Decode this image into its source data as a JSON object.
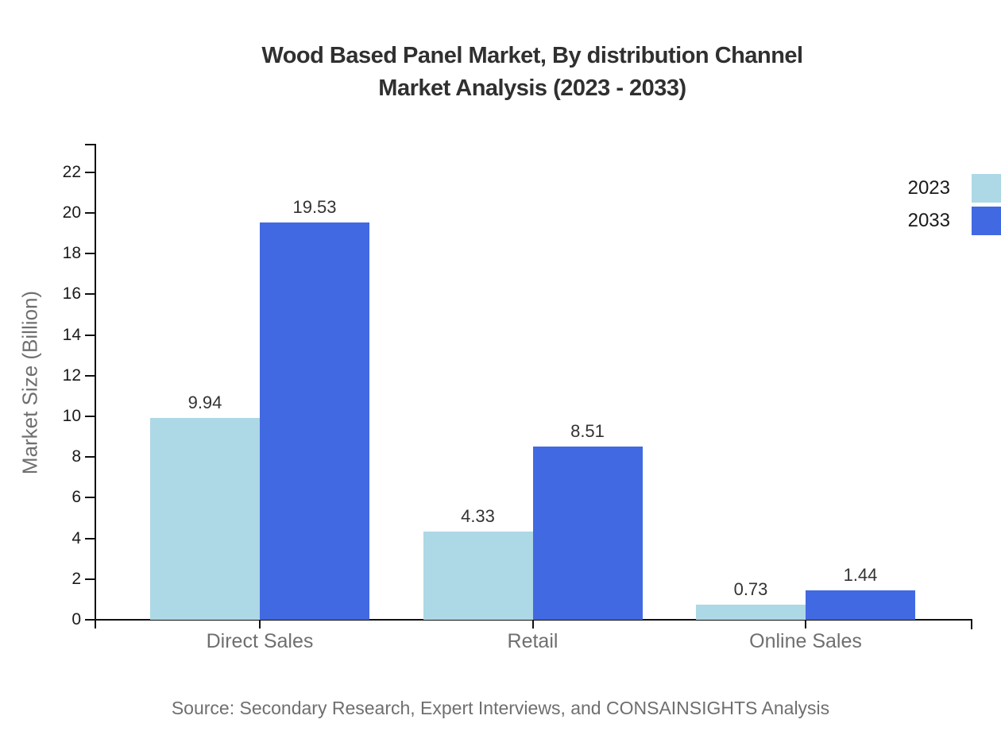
{
  "title": {
    "line1": "Wood Based Panel Market, By distribution Channel",
    "line2": "Market Analysis (2023 - 2033)"
  },
  "source_text": "Source: Secondary Research, Expert Interviews, and CONSAINSIGHTS Analysis",
  "legend": [
    {
      "label": "2023",
      "color": "#add8e6"
    },
    {
      "label": "2033",
      "color": "#4169e1"
    }
  ],
  "colors": {
    "series_2023": "#add8e6",
    "series_2033": "#4169e1",
    "axis": "#111111",
    "title_text": "#303030",
    "muted_text": "#6f6f6f",
    "tick_text": "#1a1a1a",
    "value_text": "#333333"
  },
  "chart_data": {
    "type": "bar",
    "title": "Wood Based Panel Market, By distribution Channel Market Analysis (2023 - 2033)",
    "categories": [
      "Direct Sales",
      "Retail",
      "Online Sales"
    ],
    "series": [
      {
        "name": "2023",
        "color": "#add8e6",
        "values": [
          9.94,
          4.33,
          0.73
        ]
      },
      {
        "name": "2033",
        "color": "#4169e1",
        "values": [
          19.53,
          8.51,
          1.44
        ]
      }
    ],
    "xlabel": "",
    "ylabel": "Market Size (Billion)",
    "ylim": [
      0,
      23.4
    ],
    "yticks": [
      0,
      2,
      4,
      6,
      8,
      10,
      12,
      14,
      16,
      18,
      20,
      22
    ],
    "grid": false,
    "value_labels": true,
    "legend_position": "top-right"
  }
}
